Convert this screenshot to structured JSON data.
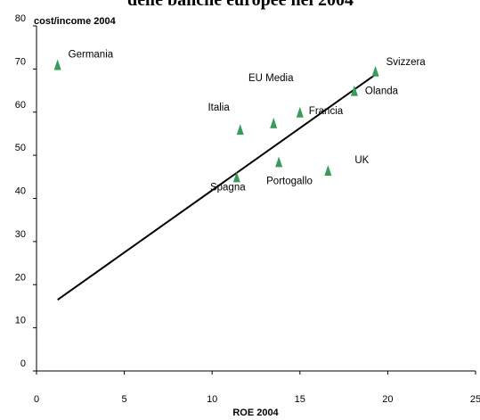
{
  "chart_data": {
    "type": "scatter",
    "title": "delle banche europee nel 2004",
    "xlabel": "ROE 2004",
    "ylabel": "cost/income 2004",
    "xlim": [
      0,
      25
    ],
    "ylim": [
      0,
      80
    ],
    "x_ticks": [
      "0",
      "5",
      "10",
      "15",
      "20",
      "25"
    ],
    "y_ticks": [
      "0",
      "10",
      "20",
      "30",
      "40",
      "50",
      "60",
      "70",
      "80"
    ],
    "grid": false,
    "marker_color": "#3a9a5a",
    "points": [
      {
        "label": "Germania",
        "x": 1.2,
        "y": 71
      },
      {
        "label": "Italia",
        "x": 11.6,
        "y": 56
      },
      {
        "label": "Spagna",
        "x": 11.4,
        "y": 45
      },
      {
        "label": "Portogallo",
        "x": 13.8,
        "y": 48.5
      },
      {
        "label": "",
        "x": 13.5,
        "y": 57.5
      },
      {
        "label": "Francia",
        "x": 15.0,
        "y": 60
      },
      {
        "label": "UK",
        "x": 16.6,
        "y": 46.5
      },
      {
        "label": "Olanda",
        "x": 18.1,
        "y": 65
      },
      {
        "label": "Svizzera",
        "x": 19.3,
        "y": 69.5
      }
    ],
    "annotation": {
      "text": "EU Media",
      "color": "#ff0000"
    },
    "trendline": {
      "x": [
        1.2,
        19.4
      ],
      "y": [
        16.5,
        69
      ]
    }
  }
}
